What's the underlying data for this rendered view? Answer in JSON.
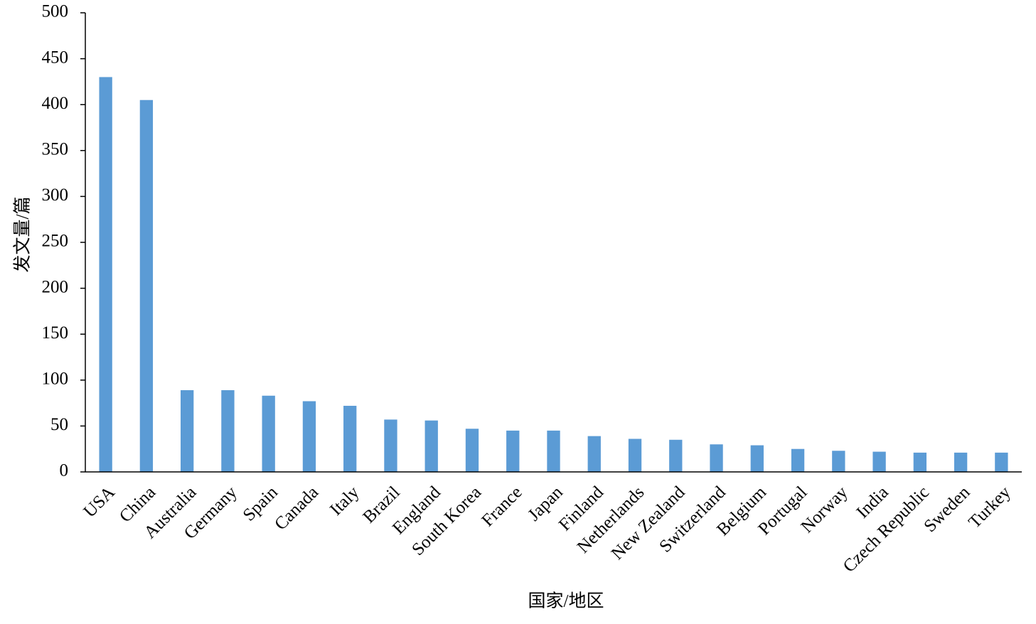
{
  "chart_data": {
    "type": "bar",
    "x_label": "国家/地区",
    "y_label": "发文量/篇",
    "categories": [
      "USA",
      "China",
      "Australia",
      "Germany",
      "Spain",
      "Canada",
      "Italy",
      "Brazil",
      "England",
      "South Korea",
      "France",
      "Japan",
      "Finland",
      "Netherlands",
      "New Zealand",
      "Switzerland",
      "Belgium",
      "Portugal",
      "Norway",
      "India",
      "Czech Republic",
      "Sweden",
      "Turkey"
    ],
    "values": [
      430,
      405,
      89,
      89,
      83,
      77,
      72,
      57,
      56,
      47,
      45,
      45,
      39,
      36,
      35,
      30,
      29,
      25,
      23,
      22,
      21,
      21,
      21
    ],
    "color": "#5b9bd5",
    "ylim": [
      0,
      500
    ],
    "yticks": [
      0,
      50,
      100,
      150,
      200,
      250,
      300,
      350,
      400,
      450,
      500
    ],
    "grid": false
  }
}
